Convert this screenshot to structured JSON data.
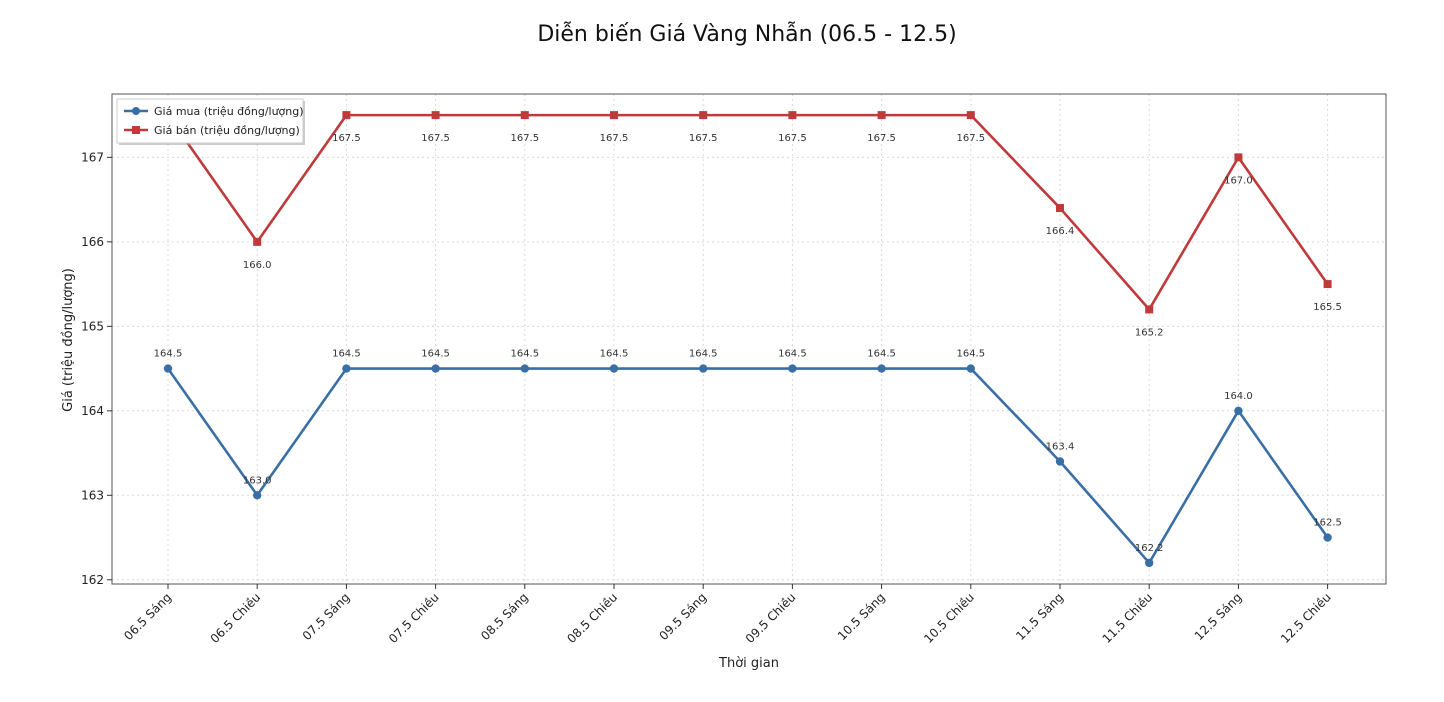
{
  "chart_data": {
    "type": "line",
    "title": "Diễn biến Giá Vàng Nhẫn (06.5 - 12.5)",
    "xlabel": "Thời gian",
    "ylabel": "Giá (triệu đồng/lượng)",
    "categories": [
      "06.5 Sáng",
      "06.5 Chiều",
      "07.5 Sáng",
      "07.5 Chiều",
      "08.5 Sáng",
      "08.5 Chiều",
      "09.5 Sáng",
      "09.5 Chiều",
      "10.5 Sáng",
      "10.5 Chiều",
      "11.5 Sáng",
      "11.5 Chiều",
      "12.5 Sáng",
      "12.5 Chiều"
    ],
    "ylim": [
      161.95,
      167.75
    ],
    "yticks": [
      162,
      163,
      164,
      165,
      166,
      167
    ],
    "grid": true,
    "legend_position": "top-left",
    "series": [
      {
        "name": "Giá mua (triệu đồng/lượng)",
        "color": "#3a6fa6",
        "marker": "circle",
        "values": [
          164.5,
          163.0,
          164.5,
          164.5,
          164.5,
          164.5,
          164.5,
          164.5,
          164.5,
          164.5,
          163.4,
          162.2,
          164.0,
          162.5
        ],
        "labels": [
          "164.5",
          "163.0",
          "164.5",
          "164.5",
          "164.5",
          "164.5",
          "164.5",
          "164.5",
          "164.5",
          "164.5",
          "163.4",
          "162.2",
          "164.0",
          "162.5"
        ]
      },
      {
        "name": "Giá bán (triệu đồng/lượng)",
        "color": "#c0393b",
        "marker": "square",
        "values": [
          167.5,
          166.0,
          167.5,
          167.5,
          167.5,
          167.5,
          167.5,
          167.5,
          167.5,
          167.5,
          166.4,
          165.2,
          167.0,
          165.5
        ],
        "labels": [
          "167.5",
          "166.0",
          "167.5",
          "167.5",
          "167.5",
          "167.5",
          "167.5",
          "167.5",
          "167.5",
          "167.5",
          "166.4",
          "165.2",
          "167.0",
          "165.5"
        ]
      }
    ]
  }
}
